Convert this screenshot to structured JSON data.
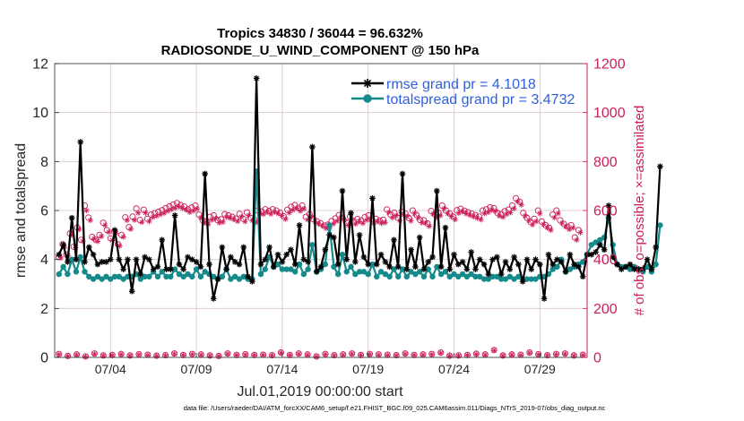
{
  "chart_data": {
    "type": "line",
    "title_line1": "Tropics 34830 / 36044 = 96.632%",
    "title_line2": "RADIOSONDE_U_WIND_COMPONENT @ 150 hPa",
    "xlabel": "Jul.01,2019 00:00:00 start",
    "ylabel_left": "rmse and totalspread",
    "ylabel_right": "# of obs: o=possible; ×=assimilated",
    "footnote": "data file: /Users/raeder/DAI/ATM_forcXX/CAM6_setup/f.e21.FHIST_BGC.f09_025.CAM6assim.011/Diags_NTrS_2019-07/obs_diag_output.nc",
    "x_range_days": [
      0.25,
      31.25
    ],
    "y_left_range": [
      0,
      12
    ],
    "y_right_range": [
      0,
      1200
    ],
    "x_ticks": [
      {
        "day": 3.5,
        "label": "07/04"
      },
      {
        "day": 8.5,
        "label": "07/09"
      },
      {
        "day": 13.5,
        "label": "07/14"
      },
      {
        "day": 18.5,
        "label": "07/19"
      },
      {
        "day": 23.5,
        "label": "07/24"
      },
      {
        "day": 28.5,
        "label": "07/29"
      }
    ],
    "y_left_ticks": [
      "0",
      "2",
      "4",
      "6",
      "8",
      "10",
      "12"
    ],
    "y_right_ticks": [
      "0",
      "200",
      "400",
      "600",
      "800",
      "1000",
      "1200"
    ],
    "grid": true,
    "x_start_day": 0.5,
    "x_step_days": 0.25,
    "series": [
      {
        "name": "rmse",
        "legend": "rmse grand pr = 4.1018",
        "color": "#000000",
        "marker": "star",
        "values": [
          4.2,
          4.6,
          3.9,
          5.7,
          4.0,
          8.8,
          3.9,
          4.5,
          4.2,
          3.8,
          3.9,
          3.9,
          4.0,
          5.2,
          4.0,
          3.6,
          4.0,
          2.7,
          4.0,
          3.4,
          4.1,
          4.0,
          3.6,
          3.7,
          4.8,
          3.6,
          3.6,
          5.8,
          3.8,
          3.6,
          4.1,
          4.0,
          3.9,
          3.7,
          7.5,
          3.8,
          2.4,
          3.2,
          4.5,
          3.6,
          4.1,
          3.9,
          3.8,
          4.5,
          3.3,
          3.1,
          11.4,
          3.8,
          4.0,
          4.5,
          3.7,
          4.2,
          3.9,
          4.2,
          4.4,
          3.8,
          5.4,
          4.0,
          3.9,
          8.6,
          3.5,
          3.7,
          4.4,
          5.0,
          4.9,
          3.8,
          6.8,
          4.0,
          5.9,
          3.9,
          5.0,
          4.1,
          3.8,
          6.5,
          3.8,
          4.2,
          3.9,
          3.7,
          4.8,
          3.7,
          7.5,
          3.6,
          4.4,
          3.7,
          4.9,
          3.6,
          3.9,
          4.1,
          6.8,
          3.7,
          5.3,
          3.6,
          4.2,
          3.8,
          3.9,
          3.6,
          4.3,
          3.6,
          4.0,
          3.8,
          3.4,
          4.0,
          4.1,
          3.4,
          3.9,
          3.6,
          4.1,
          3.8,
          3.1,
          4.0,
          3.6,
          4.0,
          3.8,
          2.4,
          4.2,
          3.8,
          4.0,
          3.9,
          3.5,
          4.2,
          3.8,
          3.7,
          3.3,
          4.2,
          4.2,
          4.3,
          4.6,
          4.4,
          6.2,
          4.1,
          3.8,
          3.6,
          3.7,
          3.8,
          3.6,
          3.6,
          3.6,
          4.0,
          3.6,
          4.5,
          7.8
        ]
      },
      {
        "name": "totalspread",
        "legend": "totalspread grand pr = 3.4732",
        "color": "#148a8a",
        "marker": "circle",
        "values": [
          3.4,
          3.7,
          3.4,
          4.0,
          3.5,
          4.1,
          3.5,
          3.3,
          3.2,
          3.3,
          3.2,
          3.3,
          3.2,
          3.3,
          3.3,
          3.2,
          3.3,
          3.3,
          3.4,
          3.2,
          3.3,
          3.3,
          3.5,
          3.3,
          3.5,
          3.3,
          3.3,
          3.6,
          3.4,
          3.3,
          3.4,
          3.3,
          3.6,
          3.3,
          3.5,
          3.4,
          3.3,
          3.2,
          3.3,
          3.6,
          3.2,
          3.3,
          3.2,
          3.3,
          3.2,
          3.2,
          7.6,
          3.4,
          3.6,
          4.1,
          3.7,
          3.8,
          3.6,
          3.6,
          3.6,
          3.5,
          3.8,
          3.4,
          3.6,
          4.6,
          3.5,
          3.6,
          3.8,
          5.4,
          3.7,
          3.4,
          4.2,
          3.5,
          3.7,
          3.4,
          3.5,
          3.5,
          3.4,
          3.8,
          3.3,
          3.5,
          3.4,
          3.3,
          3.6,
          3.3,
          3.6,
          3.3,
          3.5,
          3.4,
          3.5,
          3.3,
          3.6,
          3.3,
          3.7,
          3.4,
          3.5,
          3.3,
          3.4,
          3.3,
          3.4,
          3.3,
          3.4,
          3.3,
          3.3,
          3.2,
          3.2,
          3.3,
          3.3,
          3.2,
          3.2,
          3.3,
          3.2,
          3.3,
          3.2,
          3.2,
          3.2,
          3.2,
          3.3,
          3.3,
          3.4,
          3.6,
          3.7,
          4.0,
          3.5,
          3.6,
          3.7,
          3.8,
          3.9,
          4.2,
          4.6,
          4.7,
          4.8,
          4.9,
          5.7,
          4.6,
          3.8,
          3.7,
          3.7,
          3.6,
          3.7,
          3.6,
          3.5,
          3.7,
          3.5,
          3.8,
          5.4
        ]
      }
    ],
    "obs_possible": [
      410,
      462,
      420,
      506,
      452,
      530,
      480,
      620,
      571,
      492,
      480,
      500,
      550,
      520,
      486,
      514,
      462,
      500,
      572,
      532,
      575,
      608,
      561,
      603,
      566,
      583,
      589,
      595,
      601,
      610,
      617,
      624,
      630,
      622,
      616,
      605,
      612,
      620,
      583,
      560,
      555,
      574,
      580,
      561,
      564,
      585,
      580,
      574,
      567,
      586,
      566,
      592,
      570,
      562,
      600,
      596,
      605,
      598,
      605,
      600,
      591,
      576,
      603,
      615,
      622,
      611,
      620,
      574,
      585,
      565,
      556,
      548,
      538,
      542,
      557,
      568,
      581,
      570,
      551,
      575,
      556,
      565,
      559,
      573,
      580,
      560,
      566,
      559,
      562,
      604,
      583,
      591,
      570,
      595,
      588,
      569,
      600,
      582,
      561,
      560,
      547,
      598,
      584,
      591,
      620,
      600,
      588,
      575,
      601,
      607,
      599,
      593,
      587,
      581,
      575,
      600,
      605,
      613,
      610,
      590,
      585,
      597,
      603,
      620,
      650,
      636,
      590,
      570,
      553,
      566,
      600,
      555,
      541,
      530,
      583,
      600,
      560,
      545,
      534,
      540,
      490,
      520
    ],
    "obs_assimilated": [
      406,
      450,
      416,
      500,
      448,
      523,
      475,
      600,
      560,
      485,
      474,
      494,
      540,
      512,
      478,
      507,
      455,
      492,
      560,
      524,
      561,
      590,
      552,
      590,
      556,
      573,
      578,
      584,
      589,
      598,
      604,
      610,
      616,
      609,
      603,
      593,
      599,
      607,
      571,
      549,
      544,
      562,
      568,
      550,
      553,
      573,
      569,
      563,
      556,
      574,
      555,
      580,
      559,
      551,
      588,
      585,
      593,
      586,
      593,
      588,
      580,
      565,
      591,
      602,
      609,
      598,
      607,
      562,
      573,
      554,
      545,
      537,
      527,
      531,
      546,
      557,
      570,
      559,
      540,
      563,
      545,
      554,
      548,
      561,
      568,
      549,
      555,
      548,
      551,
      592,
      571,
      579,
      559,
      583,
      576,
      558,
      588,
      571,
      550,
      549,
      536,
      586,
      572,
      579,
      608,
      588,
      576,
      563,
      589,
      595,
      587,
      581,
      575,
      569,
      563,
      588,
      593,
      601,
      598,
      578,
      573,
      585,
      591,
      608,
      637,
      623,
      578,
      559,
      542,
      555,
      588,
      544,
      530,
      520,
      571,
      588,
      549,
      534,
      523,
      529,
      480,
      510
    ],
    "obs_low_possible": [
      14,
      6,
      12,
      4,
      16,
      8,
      10,
      14,
      8,
      13,
      11,
      7,
      9,
      16,
      10,
      14,
      12,
      8,
      6,
      16,
      10,
      13,
      10,
      11,
      9,
      20,
      10,
      16,
      12,
      4,
      14,
      9,
      12,
      16,
      10,
      14,
      12,
      11,
      9,
      16,
      10,
      12,
      14,
      20,
      7,
      8,
      10,
      15,
      12,
      30,
      8,
      12,
      11,
      20,
      13,
      9,
      14,
      16,
      8,
      11
    ],
    "obs_low_assimilated": [
      12,
      5,
      10,
      3,
      14,
      7,
      8,
      12,
      7,
      11,
      9,
      6,
      8,
      14,
      9,
      12,
      10,
      7,
      5,
      14,
      9,
      11,
      9,
      10,
      8,
      18,
      9,
      14,
      10,
      3,
      12,
      8,
      10,
      14,
      9,
      12,
      10,
      9,
      8,
      14,
      9,
      10,
      12,
      18,
      6,
      7,
      9,
      13,
      10,
      28,
      7,
      10,
      9,
      18,
      11,
      8,
      12,
      14,
      7,
      9
    ]
  }
}
